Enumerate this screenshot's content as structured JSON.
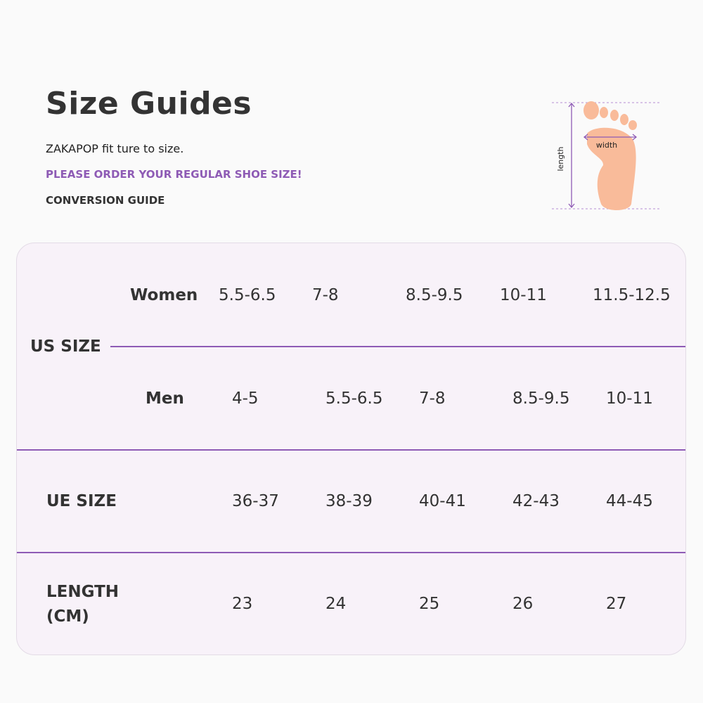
{
  "header": {
    "title": "Size Guides",
    "subtitle": "ZAKAPOP fit ture to size.",
    "notice": "PLEASE ORDER YOUR REGULAR SHOE SIZE!",
    "section": "CONVERSION GUIDE"
  },
  "illustration": {
    "length_label": "length",
    "width_label": "width",
    "foot_color": "#f9bb9a",
    "accent": "#8e5bb5"
  },
  "table": {
    "us_label": "US SIZE",
    "women_label": "Women",
    "women": [
      "5.5-6.5",
      "7-8",
      "8.5-9.5",
      "10-11",
      "11.5-12.5"
    ],
    "men_label": "Men",
    "men": [
      "4-5",
      "5.5-6.5",
      "7-8",
      "8.5-9.5",
      "10-11"
    ],
    "ue_label": "UE SIZE",
    "ue": [
      "36-37",
      "38-39",
      "40-41",
      "42-43",
      "44-45"
    ],
    "length_label_1": "LENGTH",
    "length_label_2": "(CM)",
    "length": [
      "23",
      "24",
      "25",
      "26",
      "27"
    ]
  }
}
